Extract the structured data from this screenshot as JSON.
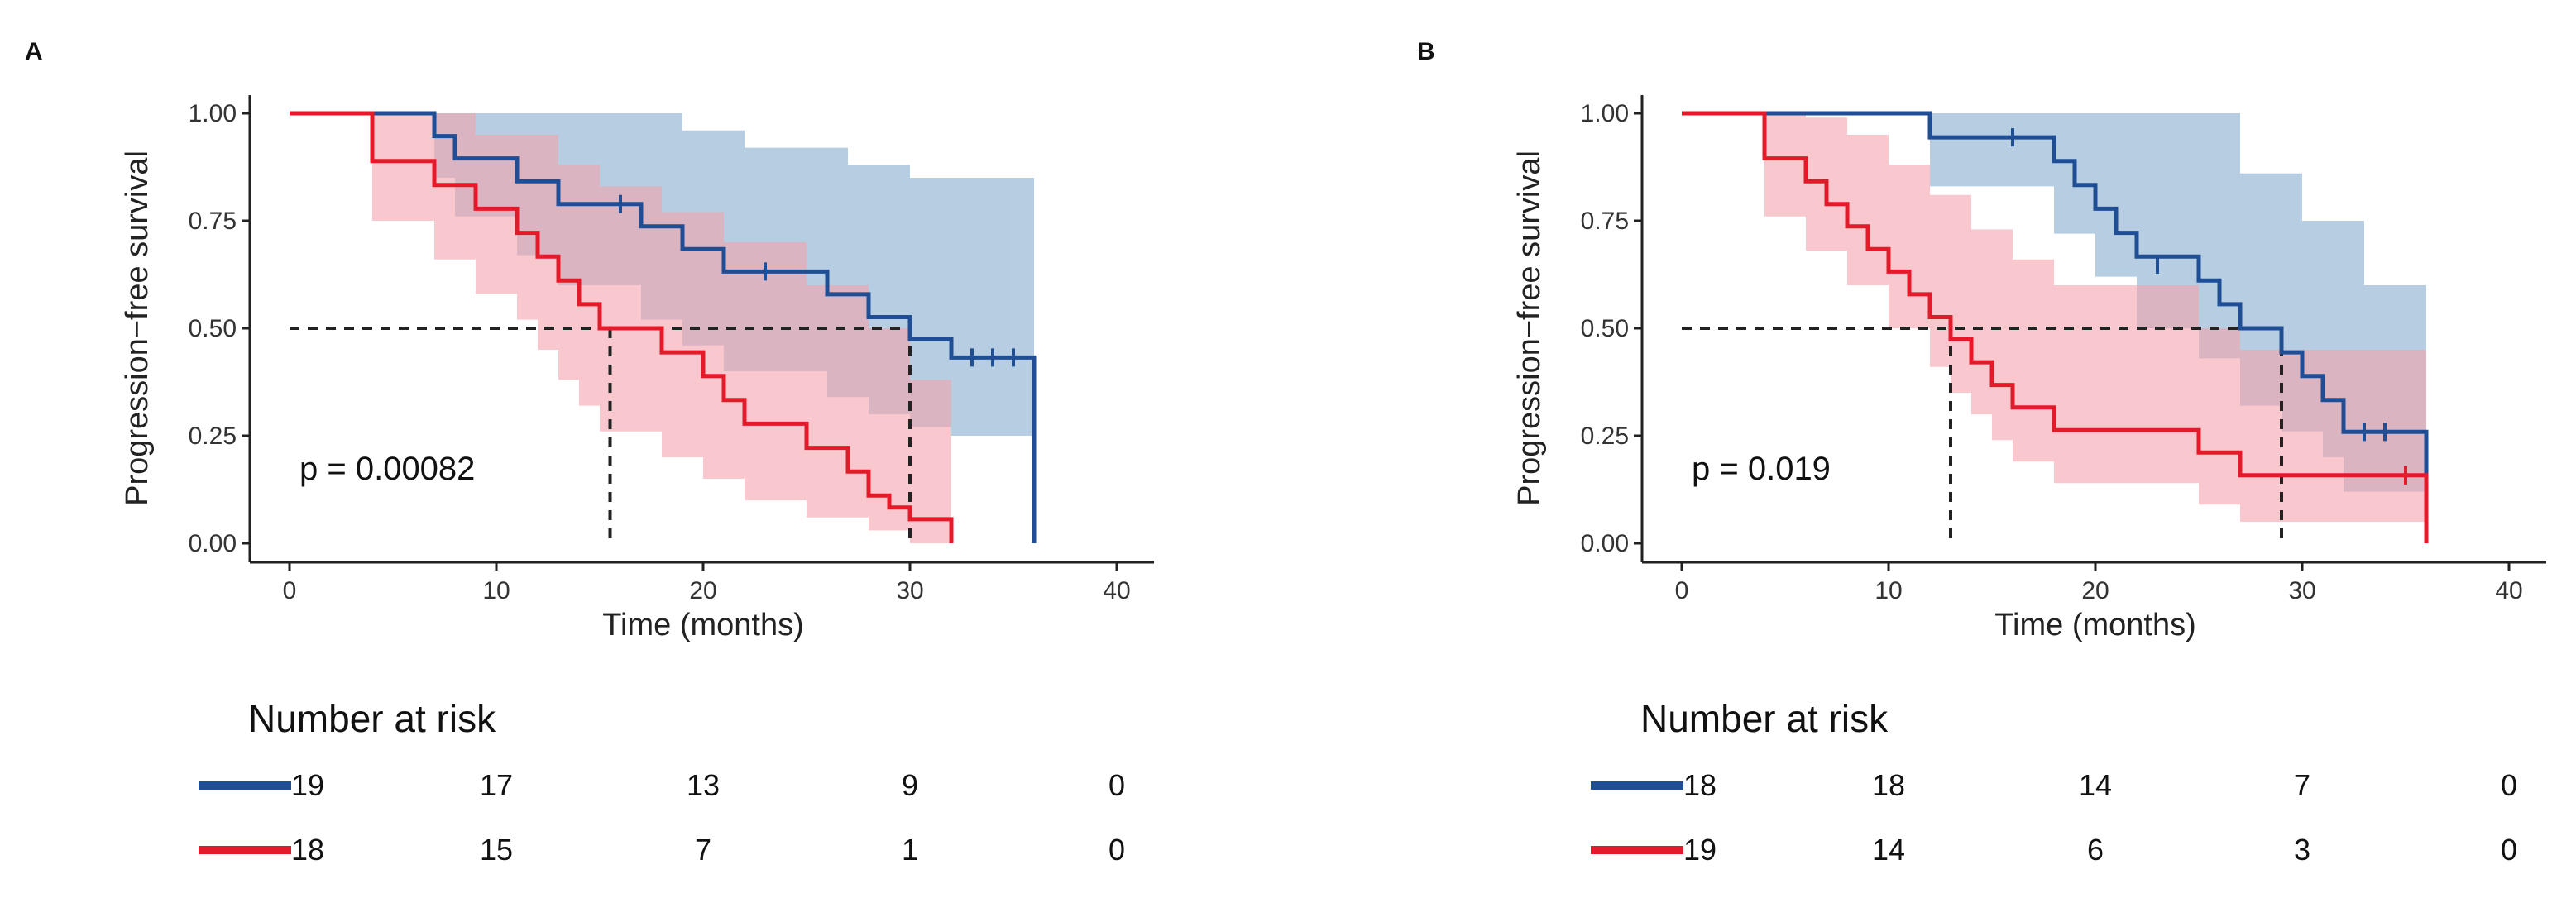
{
  "colors": {
    "blue": "#1f4e94",
    "red": "#e31a2a",
    "blue_band": "#9fbcd8",
    "red_band": "#f4a3ae"
  },
  "chart_data": [
    {
      "type": "line",
      "subtype": "kaplan-meier",
      "panel_label": "A",
      "title": "",
      "xlabel": "Time (months)",
      "ylabel": "Progression−free survival",
      "xlim": [
        0,
        40
      ],
      "ylim": [
        0,
        1
      ],
      "xticks": [
        "0",
        "10",
        "20",
        "30",
        "40"
      ],
      "yticks": [
        "0.00",
        "0.25",
        "0.50",
        "0.75",
        "1.00"
      ],
      "pvalue": "p = 0.00082",
      "median_reference": {
        "y": 0.5,
        "medians": [
          15.5,
          30
        ]
      },
      "series": [
        {
          "name": "blue group",
          "color": "#1f4e94",
          "steps": [
            [
              0,
              1.0
            ],
            [
              7,
              0.947
            ],
            [
              8,
              0.895
            ],
            [
              11,
              0.842
            ],
            [
              13,
              0.789
            ],
            [
              17,
              0.737
            ],
            [
              19,
              0.684
            ],
            [
              21,
              0.632
            ],
            [
              26,
              0.579
            ],
            [
              28,
              0.526
            ],
            [
              30,
              0.474
            ],
            [
              32,
              0.432
            ],
            [
              36,
              0.0
            ]
          ],
          "end_time": 36,
          "censors": [
            [
              16,
              0.789
            ],
            [
              23,
              0.632
            ],
            [
              33,
              0.432
            ],
            [
              34,
              0.432
            ],
            [
              35,
              0.432
            ]
          ],
          "ci_upper": [
            [
              0,
              1.0
            ],
            [
              13,
              1.0
            ],
            [
              19,
              0.96
            ],
            [
              22,
              0.92
            ],
            [
              27,
              0.88
            ],
            [
              30,
              0.85
            ],
            [
              36,
              0.85
            ]
          ],
          "ci_lower": [
            [
              0,
              1.0
            ],
            [
              7,
              0.85
            ],
            [
              8,
              0.76
            ],
            [
              11,
              0.67
            ],
            [
              13,
              0.6
            ],
            [
              17,
              0.52
            ],
            [
              19,
              0.46
            ],
            [
              21,
              0.4
            ],
            [
              26,
              0.34
            ],
            [
              28,
              0.3
            ],
            [
              30,
              0.27
            ],
            [
              32,
              0.25
            ],
            [
              36,
              0.25
            ]
          ]
        },
        {
          "name": "red group",
          "color": "#e31a2a",
          "steps": [
            [
              0,
              1.0
            ],
            [
              4,
              0.889
            ],
            [
              7,
              0.833
            ],
            [
              9,
              0.778
            ],
            [
              11,
              0.722
            ],
            [
              12,
              0.667
            ],
            [
              13,
              0.611
            ],
            [
              14,
              0.556
            ],
            [
              15,
              0.5
            ],
            [
              18,
              0.444
            ],
            [
              20,
              0.389
            ],
            [
              21,
              0.333
            ],
            [
              22,
              0.278
            ],
            [
              25,
              0.222
            ],
            [
              27,
              0.167
            ],
            [
              28,
              0.111
            ],
            [
              29,
              0.083
            ],
            [
              30,
              0.056
            ],
            [
              32,
              0.0
            ]
          ],
          "end_time": 32,
          "censors": [],
          "ci_upper": [
            [
              0,
              1.0
            ],
            [
              4,
              1.0
            ],
            [
              9,
              0.95
            ],
            [
              13,
              0.88
            ],
            [
              15,
              0.83
            ],
            [
              18,
              0.77
            ],
            [
              21,
              0.7
            ],
            [
              25,
              0.6
            ],
            [
              28,
              0.5
            ],
            [
              30,
              0.38
            ],
            [
              32,
              0.35
            ]
          ],
          "ci_lower": [
            [
              0,
              1.0
            ],
            [
              4,
              0.75
            ],
            [
              7,
              0.66
            ],
            [
              9,
              0.58
            ],
            [
              11,
              0.52
            ],
            [
              12,
              0.45
            ],
            [
              13,
              0.38
            ],
            [
              14,
              0.32
            ],
            [
              15,
              0.26
            ],
            [
              18,
              0.2
            ],
            [
              20,
              0.15
            ],
            [
              22,
              0.1
            ],
            [
              25,
              0.06
            ],
            [
              28,
              0.03
            ],
            [
              30,
              0.0
            ],
            [
              32,
              0.0
            ]
          ]
        }
      ],
      "risk_table": {
        "title": "Number at risk",
        "times": [
          0,
          10,
          20,
          30,
          40
        ],
        "rows": [
          {
            "color": "#1f4e94",
            "values": [
              "19",
              "17",
              "13",
              "9",
              "0"
            ]
          },
          {
            "color": "#e31a2a",
            "values": [
              "18",
              "15",
              "7",
              "1",
              "0"
            ]
          }
        ]
      }
    },
    {
      "type": "line",
      "subtype": "kaplan-meier",
      "panel_label": "B",
      "title": "",
      "xlabel": "Time (months)",
      "ylabel": "Progression−free survival",
      "xlim": [
        0,
        40
      ],
      "ylim": [
        0,
        1
      ],
      "xticks": [
        "0",
        "10",
        "20",
        "30",
        "40"
      ],
      "yticks": [
        "0.00",
        "0.25",
        "0.50",
        "0.75",
        "1.00"
      ],
      "pvalue": "p = 0.019",
      "median_reference": {
        "y": 0.5,
        "medians": [
          13,
          29
        ]
      },
      "series": [
        {
          "name": "blue group",
          "color": "#1f4e94",
          "steps": [
            [
              0,
              1.0
            ],
            [
              12,
              0.944
            ],
            [
              18,
              0.889
            ],
            [
              19,
              0.833
            ],
            [
              20,
              0.778
            ],
            [
              21,
              0.722
            ],
            [
              22,
              0.667
            ],
            [
              25,
              0.611
            ],
            [
              26,
              0.556
            ],
            [
              27,
              0.5
            ],
            [
              29,
              0.444
            ],
            [
              30,
              0.389
            ],
            [
              31,
              0.333
            ],
            [
              32,
              0.259
            ],
            [
              36,
              0.0
            ]
          ],
          "end_time": 36,
          "censors": [
            [
              16,
              0.944
            ],
            [
              23,
              0.648
            ],
            [
              33,
              0.259
            ],
            [
              34,
              0.259
            ]
          ],
          "ci_upper": [
            [
              0,
              1.0
            ],
            [
              23,
              1.0
            ],
            [
              27,
              0.86
            ],
            [
              30,
              0.75
            ],
            [
              33,
              0.6
            ],
            [
              36,
              0.6
            ]
          ],
          "ci_lower": [
            [
              0,
              1.0
            ],
            [
              12,
              0.83
            ],
            [
              18,
              0.72
            ],
            [
              20,
              0.62
            ],
            [
              22,
              0.5
            ],
            [
              25,
              0.43
            ],
            [
              27,
              0.32
            ],
            [
              29,
              0.26
            ],
            [
              31,
              0.2
            ],
            [
              32,
              0.12
            ],
            [
              36,
              0.12
            ]
          ]
        },
        {
          "name": "red group",
          "color": "#e31a2a",
          "steps": [
            [
              0,
              1.0
            ],
            [
              4,
              0.895
            ],
            [
              6,
              0.842
            ],
            [
              7,
              0.789
            ],
            [
              8,
              0.737
            ],
            [
              9,
              0.684
            ],
            [
              10,
              0.632
            ],
            [
              11,
              0.579
            ],
            [
              12,
              0.526
            ],
            [
              13,
              0.474
            ],
            [
              14,
              0.421
            ],
            [
              15,
              0.368
            ],
            [
              16,
              0.316
            ],
            [
              18,
              0.263
            ],
            [
              25,
              0.211
            ],
            [
              27,
              0.158
            ],
            [
              36,
              0.0
            ]
          ],
          "end_time": 36,
          "censors": [
            [
              35,
              0.158
            ]
          ],
          "ci_upper": [
            [
              0,
              1.0
            ],
            [
              6,
              0.99
            ],
            [
              8,
              0.95
            ],
            [
              10,
              0.88
            ],
            [
              12,
              0.81
            ],
            [
              14,
              0.73
            ],
            [
              16,
              0.66
            ],
            [
              18,
              0.6
            ],
            [
              25,
              0.5
            ],
            [
              27,
              0.45
            ],
            [
              36,
              0.45
            ]
          ],
          "ci_lower": [
            [
              0,
              1.0
            ],
            [
              4,
              0.76
            ],
            [
              6,
              0.68
            ],
            [
              8,
              0.6
            ],
            [
              10,
              0.5
            ],
            [
              12,
              0.41
            ],
            [
              13,
              0.35
            ],
            [
              14,
              0.3
            ],
            [
              15,
              0.24
            ],
            [
              16,
              0.19
            ],
            [
              18,
              0.14
            ],
            [
              25,
              0.09
            ],
            [
              27,
              0.05
            ],
            [
              36,
              0.05
            ]
          ]
        }
      ],
      "risk_table": {
        "title": "Number at risk",
        "times": [
          0,
          10,
          20,
          30,
          40
        ],
        "rows": [
          {
            "color": "#1f4e94",
            "values": [
              "18",
              "18",
              "14",
              "7",
              "0"
            ]
          },
          {
            "color": "#e31a2a",
            "values": [
              "19",
              "14",
              "6",
              "3",
              "0"
            ]
          }
        ]
      }
    }
  ]
}
